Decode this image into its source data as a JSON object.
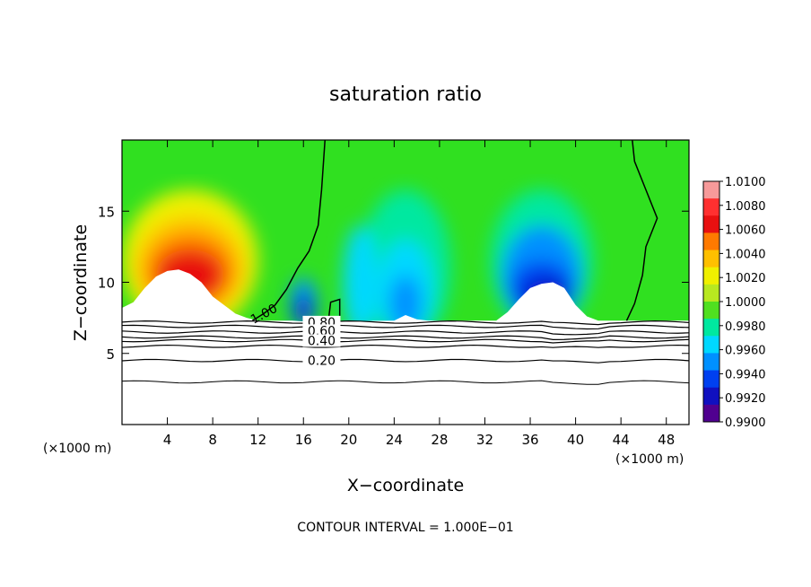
{
  "chart_data": {
    "type": "heatmap",
    "title": "saturation ratio",
    "xlabel": "X−coordinate",
    "ylabel": "Z−coordinate",
    "x_unit_left": "(×1000 m)",
    "x_unit_right": "(×1000 m)",
    "footer": "CONTOUR INTERVAL = 1.000E−01",
    "xlim": [
      0,
      50
    ],
    "ylim": [
      0,
      20
    ],
    "x_ticks": [
      4,
      8,
      12,
      16,
      20,
      24,
      28,
      32,
      36,
      40,
      44,
      48
    ],
    "y_ticks": [
      5,
      10,
      15
    ],
    "colorbar": {
      "ticks": [
        "1.0100",
        "1.0080",
        "1.0060",
        "1.0040",
        "1.0020",
        "1.0000",
        "0.9980",
        "0.9960",
        "0.9940",
        "0.9920",
        "0.9900"
      ],
      "colors": [
        "#f79a9a",
        "#ff3030",
        "#e81010",
        "#ff7a00",
        "#ffc000",
        "#f0f000",
        "#b8e820",
        "#50e020",
        "#00e8a0",
        "#00d8ff",
        "#0090ff",
        "#0040f0",
        "#1010c0",
        "#500090"
      ]
    },
    "contour_labels": [
      {
        "text": "1.00",
        "x": 12.5,
        "z": 7.8
      },
      {
        "text": "0.80",
        "x": 17.6,
        "z": 7.2
      },
      {
        "text": "0.60",
        "x": 17.6,
        "z": 6.6
      },
      {
        "text": "0.40",
        "x": 17.6,
        "z": 5.9
      },
      {
        "text": "0.20",
        "x": 17.6,
        "z": 4.5
      }
    ],
    "contour_levels_z": [
      7.2,
      6.9,
      6.5,
      6.15,
      5.9,
      5.5,
      4.5,
      3.0
    ],
    "saturation_field": {
      "background": "#30e020",
      "features": [
        {
          "x": 6.0,
          "z": 11.5,
          "rx": 6.0,
          "rz": 5.0,
          "color": "#f0f000"
        },
        {
          "x": 6.0,
          "z": 11.0,
          "rx": 4.8,
          "rz": 3.6,
          "color": "#ffc000"
        },
        {
          "x": 6.0,
          "z": 10.8,
          "rx": 3.8,
          "rz": 2.6,
          "color": "#ff7a00"
        },
        {
          "x": 6.0,
          "z": 10.5,
          "rx": 3.0,
          "rz": 1.8,
          "color": "#e81010"
        },
        {
          "x": 25.0,
          "z": 11.0,
          "rx": 4.0,
          "rz": 5.5,
          "color": "#00e8a0"
        },
        {
          "x": 25.0,
          "z": 9.5,
          "rx": 2.4,
          "rz": 3.5,
          "color": "#00d8ff"
        },
        {
          "x": 25.0,
          "z": 8.5,
          "rx": 1.4,
          "rz": 2.0,
          "color": "#0090ff"
        },
        {
          "x": 16.0,
          "z": 8.5,
          "rx": 1.2,
          "rz": 1.8,
          "color": "#0090ff"
        },
        {
          "x": 16.0,
          "z": 8.0,
          "rx": 0.8,
          "rz": 1.0,
          "color": "#1010c0"
        },
        {
          "x": 21.0,
          "z": 10.0,
          "rx": 1.5,
          "rz": 4.0,
          "color": "#00d8ff"
        },
        {
          "x": 37.0,
          "z": 11.5,
          "rx": 4.5,
          "rz": 5.0,
          "color": "#00e8a0"
        },
        {
          "x": 37.0,
          "z": 10.5,
          "rx": 3.5,
          "rz": 3.5,
          "color": "#0090ff"
        },
        {
          "x": 37.0,
          "z": 9.5,
          "rx": 2.8,
          "rz": 2.0,
          "color": "#0040f0"
        },
        {
          "x": 37.5,
          "z": 9.0,
          "rx": 2.0,
          "rz": 1.2,
          "color": "#1010c0"
        }
      ]
    }
  }
}
